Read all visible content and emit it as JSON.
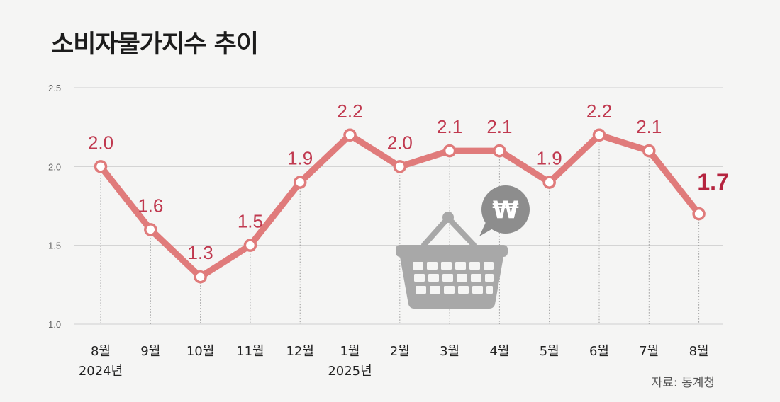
{
  "title": "소비자물가지수 추이",
  "source": "자료: 통계청",
  "chart_data": {
    "type": "line",
    "categories": [
      "8월",
      "9월",
      "10월",
      "11월",
      "12월",
      "1월",
      "2월",
      "3월",
      "4월",
      "5월",
      "6월",
      "7월",
      "8월"
    ],
    "year_labels": [
      {
        "index": 0,
        "label": "2024년"
      },
      {
        "index": 5,
        "label": "2025년"
      }
    ],
    "values": [
      2.0,
      1.6,
      1.3,
      1.5,
      1.9,
      2.2,
      2.0,
      2.1,
      2.1,
      1.9,
      2.2,
      2.1,
      1.7
    ],
    "data_labels": [
      "2.0",
      "1.6",
      "1.3",
      "1.5",
      "1.9",
      "2.2",
      "2.0",
      "2.1",
      "2.1",
      "1.9",
      "2.2",
      "2.1",
      "1.7"
    ],
    "yticks": [
      "1.0",
      "1.5",
      "2.0",
      "2.5"
    ],
    "ylim": [
      1.0,
      2.5
    ],
    "grid": true,
    "highlight_last": true,
    "colors": {
      "line": "#e07b7b",
      "label": "#c0394f",
      "label_last": "#b5243f",
      "grid": "#cfcfcf",
      "basket": "#a8a8a8",
      "bubble": "#8d8d8d"
    }
  },
  "icons": [
    "shopping-basket-icon",
    "won-bubble-icon"
  ]
}
